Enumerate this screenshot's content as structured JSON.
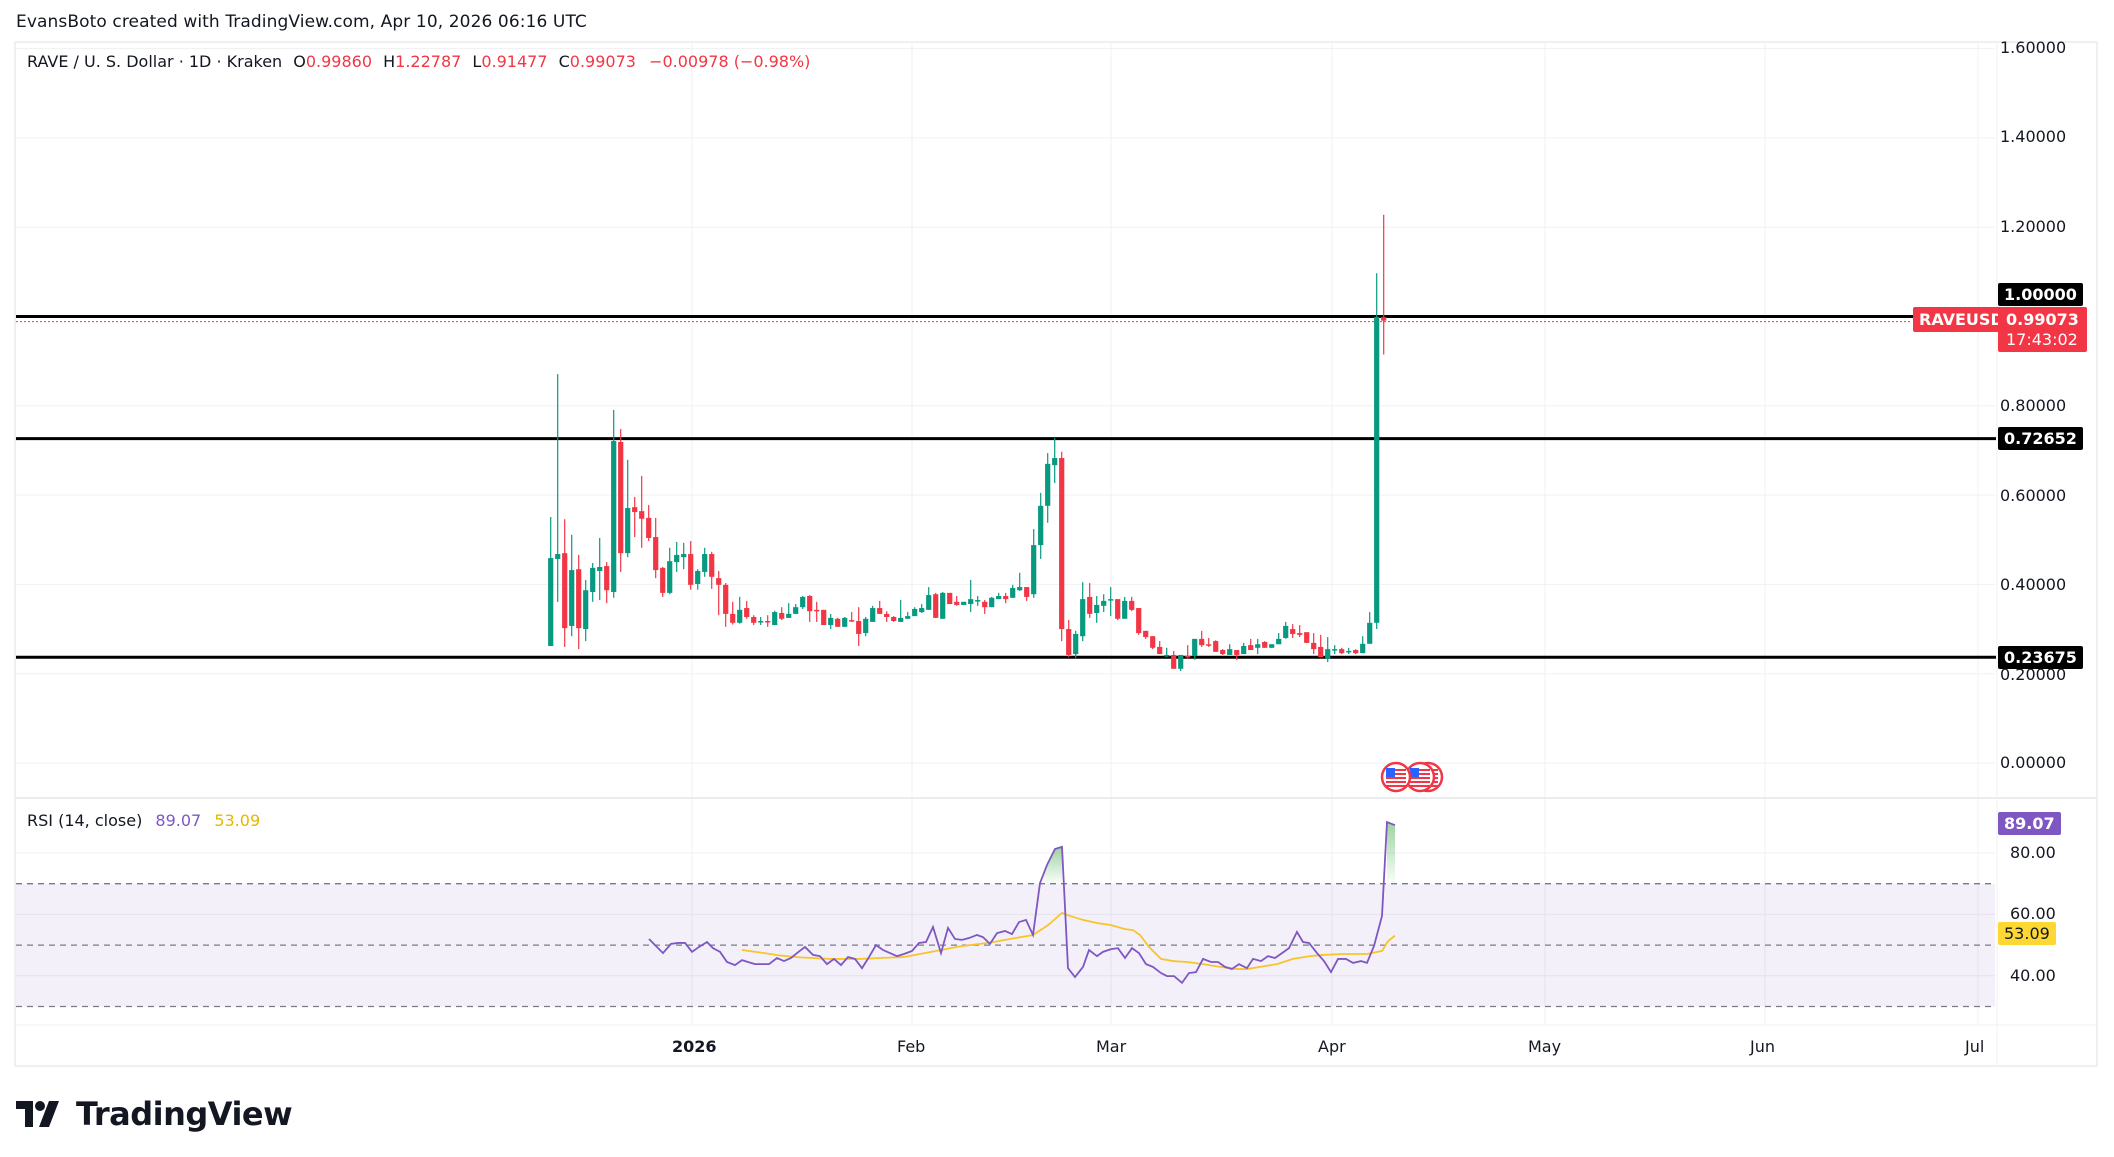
{
  "credit": "EvansBoto created with TradingView.com, Apr 10, 2026 06:16 UTC",
  "legend": {
    "symbol": "RAVE / U. S. Dollar · 1D · Kraken",
    "o_label": "O",
    "o": "0.99860",
    "h_label": "H",
    "h": "1.22787",
    "l_label": "L",
    "l": "0.91477",
    "c_label": "C",
    "c": "0.99073",
    "change": "−0.00978 (−0.98%)"
  },
  "rsi_legend": {
    "label": "RSI (14, close)",
    "rsi": "89.07",
    "ma": "53.09"
  },
  "price_axis": [
    "1.60000",
    "1.40000",
    "1.20000",
    "0.80000",
    "0.60000",
    "0.40000",
    "0.20000",
    "0.00000"
  ],
  "rsi_axis": [
    "80.00",
    "60.00",
    "40.00"
  ],
  "time_axis": [
    "2026",
    "Feb",
    "Mar",
    "Apr",
    "May",
    "Jun",
    "Jul"
  ],
  "horizontal_lines": [
    "1.00000",
    "0.72652",
    "0.23675"
  ],
  "last_price": {
    "symbol": "RAVEUSD",
    "price": "0.99073",
    "countdown": "17:43:02"
  },
  "rsi_tags": {
    "rsi": "89.07",
    "ma": "53.09"
  },
  "logo": {
    "text": "TradingView"
  },
  "colors": {
    "up": "#089981",
    "down": "#f23645",
    "rsi": "#7e57c2",
    "rsi_ma": "#f7c52a",
    "band": "#7e57c2"
  },
  "chart_data": {
    "type": "candlestick",
    "title": "RAVE / U. S. Dollar · 1D · Kraken",
    "ylabel": "USD",
    "ylim": [
      0,
      1.6
    ],
    "price_ticks": [
      0,
      0.2,
      0.4,
      0.6,
      0.8,
      1.2,
      1.4,
      1.6
    ],
    "time_ticks": [
      "2026",
      "Feb",
      "Mar",
      "Apr",
      "May",
      "Jun",
      "Jul"
    ],
    "horizontal_levels": [
      1.0,
      0.72652,
      0.23675
    ],
    "last_close": 0.99073,
    "candles": [
      [
        0.262,
        0.551,
        0.262,
        0.459
      ],
      [
        0.457,
        0.871,
        0.361,
        0.468
      ],
      [
        0.47,
        0.546,
        0.26,
        0.302
      ],
      [
        0.307,
        0.511,
        0.284,
        0.432
      ],
      [
        0.434,
        0.466,
        0.255,
        0.302
      ],
      [
        0.3,
        0.41,
        0.273,
        0.387
      ],
      [
        0.383,
        0.448,
        0.361,
        0.437
      ],
      [
        0.43,
        0.504,
        0.365,
        0.439
      ],
      [
        0.441,
        0.45,
        0.358,
        0.387
      ],
      [
        0.383,
        0.791,
        0.37,
        0.721
      ],
      [
        0.719,
        0.748,
        0.428,
        0.47
      ],
      [
        0.47,
        0.679,
        0.461,
        0.571
      ],
      [
        0.573,
        0.596,
        0.506,
        0.562
      ],
      [
        0.564,
        0.643,
        0.482,
        0.547
      ],
      [
        0.549,
        0.578,
        0.497,
        0.504
      ],
      [
        0.506,
        0.549,
        0.414,
        0.432
      ],
      [
        0.437,
        0.439,
        0.372,
        0.381
      ],
      [
        0.381,
        0.482,
        0.378,
        0.452
      ],
      [
        0.45,
        0.495,
        0.428,
        0.466
      ],
      [
        0.461,
        0.493,
        0.434,
        0.468
      ],
      [
        0.468,
        0.497,
        0.388,
        0.399
      ],
      [
        0.401,
        0.434,
        0.388,
        0.43
      ],
      [
        0.428,
        0.482,
        0.417,
        0.468
      ],
      [
        0.468,
        0.473,
        0.39,
        0.417
      ],
      [
        0.414,
        0.43,
        0.331,
        0.399
      ],
      [
        0.399,
        0.403,
        0.305,
        0.334
      ],
      [
        0.334,
        0.361,
        0.31,
        0.314
      ],
      [
        0.314,
        0.372,
        0.312,
        0.343
      ],
      [
        0.347,
        0.363,
        0.323,
        0.327
      ],
      [
        0.327,
        0.331,
        0.309,
        0.314
      ],
      [
        0.316,
        0.327,
        0.309,
        0.318
      ],
      [
        0.318,
        0.331,
        0.305,
        0.316
      ],
      [
        0.309,
        0.341,
        0.309,
        0.338
      ],
      [
        0.336,
        0.349,
        0.32,
        0.323
      ],
      [
        0.325,
        0.358,
        0.325,
        0.334
      ],
      [
        0.334,
        0.356,
        0.334,
        0.349
      ],
      [
        0.349,
        0.374,
        0.345,
        0.372
      ],
      [
        0.374,
        0.376,
        0.316,
        0.34
      ],
      [
        0.343,
        0.361,
        0.316,
        0.34
      ],
      [
        0.343,
        0.343,
        0.309,
        0.309
      ],
      [
        0.309,
        0.334,
        0.3,
        0.325
      ],
      [
        0.323,
        0.325,
        0.305,
        0.305
      ],
      [
        0.305,
        0.327,
        0.305,
        0.325
      ],
      [
        0.32,
        0.338,
        0.316,
        0.318
      ],
      [
        0.318,
        0.349,
        0.262,
        0.289
      ],
      [
        0.291,
        0.327,
        0.284,
        0.323
      ],
      [
        0.316,
        0.352,
        0.316,
        0.347
      ],
      [
        0.347,
        0.363,
        0.334,
        0.334
      ],
      [
        0.334,
        0.34,
        0.316,
        0.327
      ],
      [
        0.327,
        0.329,
        0.316,
        0.318
      ],
      [
        0.316,
        0.365,
        0.316,
        0.325
      ],
      [
        0.323,
        0.338,
        0.323,
        0.329
      ],
      [
        0.329,
        0.349,
        0.329,
        0.345
      ],
      [
        0.338,
        0.356,
        0.336,
        0.347
      ],
      [
        0.343,
        0.394,
        0.343,
        0.376
      ],
      [
        0.378,
        0.381,
        0.325,
        0.325
      ],
      [
        0.323,
        0.383,
        0.323,
        0.381
      ],
      [
        0.381,
        0.381,
        0.356,
        0.356
      ],
      [
        0.361,
        0.374,
        0.352,
        0.354
      ],
      [
        0.354,
        0.361,
        0.354,
        0.361
      ],
      [
        0.356,
        0.41,
        0.338,
        0.367
      ],
      [
        0.363,
        0.374,
        0.352,
        0.365
      ],
      [
        0.361,
        0.365,
        0.334,
        0.349
      ],
      [
        0.349,
        0.372,
        0.349,
        0.37
      ],
      [
        0.367,
        0.381,
        0.367,
        0.374
      ],
      [
        0.374,
        0.381,
        0.358,
        0.367
      ],
      [
        0.37,
        0.399,
        0.37,
        0.392
      ],
      [
        0.387,
        0.426,
        0.385,
        0.394
      ],
      [
        0.394,
        0.394,
        0.363,
        0.372
      ],
      [
        0.378,
        0.524,
        0.37,
        0.488
      ],
      [
        0.488,
        0.605,
        0.457,
        0.576
      ],
      [
        0.576,
        0.694,
        0.538,
        0.67
      ],
      [
        0.667,
        0.728,
        0.627,
        0.683
      ],
      [
        0.683,
        0.697,
        0.273,
        0.3
      ],
      [
        0.3,
        0.32,
        0.237,
        0.242
      ],
      [
        0.244,
        0.296,
        0.235,
        0.289
      ],
      [
        0.284,
        0.405,
        0.273,
        0.367
      ],
      [
        0.372,
        0.403,
        0.325,
        0.334
      ],
      [
        0.336,
        0.374,
        0.314,
        0.354
      ],
      [
        0.352,
        0.378,
        0.338,
        0.363
      ],
      [
        0.365,
        0.394,
        0.329,
        0.367
      ],
      [
        0.367,
        0.367,
        0.32,
        0.323
      ],
      [
        0.323,
        0.372,
        0.323,
        0.363
      ],
      [
        0.363,
        0.372,
        0.34,
        0.343
      ],
      [
        0.347,
        0.347,
        0.287,
        0.291
      ],
      [
        0.296,
        0.296,
        0.278,
        0.282
      ],
      [
        0.284,
        0.284,
        0.255,
        0.258
      ],
      [
        0.26,
        0.273,
        0.244,
        0.244
      ],
      [
        0.24,
        0.258,
        0.237,
        0.242
      ],
      [
        0.242,
        0.251,
        0.211,
        0.211
      ],
      [
        0.211,
        0.242,
        0.206,
        0.242
      ],
      [
        0.24,
        0.264,
        0.233,
        0.237
      ],
      [
        0.24,
        0.278,
        0.231,
        0.278
      ],
      [
        0.278,
        0.296,
        0.26,
        0.264
      ],
      [
        0.266,
        0.28,
        0.26,
        0.264
      ],
      [
        0.273,
        0.275,
        0.249,
        0.249
      ],
      [
        0.253,
        0.255,
        0.242,
        0.244
      ],
      [
        0.242,
        0.266,
        0.242,
        0.255
      ],
      [
        0.253,
        0.253,
        0.231,
        0.242
      ],
      [
        0.244,
        0.269,
        0.244,
        0.262
      ],
      [
        0.264,
        0.278,
        0.253,
        0.253
      ],
      [
        0.258,
        0.278,
        0.244,
        0.266
      ],
      [
        0.271,
        0.273,
        0.258,
        0.258
      ],
      [
        0.258,
        0.266,
        0.258,
        0.266
      ],
      [
        0.266,
        0.291,
        0.266,
        0.278
      ],
      [
        0.28,
        0.316,
        0.278,
        0.307
      ],
      [
        0.3,
        0.311,
        0.28,
        0.289
      ],
      [
        0.291,
        0.309,
        0.282,
        0.287
      ],
      [
        0.293,
        0.293,
        0.269,
        0.269
      ],
      [
        0.269,
        0.291,
        0.244,
        0.255
      ],
      [
        0.26,
        0.287,
        0.237,
        0.237
      ],
      [
        0.233,
        0.282,
        0.226,
        0.255
      ],
      [
        0.253,
        0.264,
        0.244,
        0.255
      ],
      [
        0.255,
        0.258,
        0.244,
        0.246
      ],
      [
        0.249,
        0.258,
        0.244,
        0.251
      ],
      [
        0.253,
        0.255,
        0.244,
        0.246
      ],
      [
        0.246,
        0.284,
        0.246,
        0.267
      ],
      [
        0.267,
        0.338,
        0.267,
        0.314
      ],
      [
        0.314,
        1.097,
        0.3,
        0.999
      ],
      [
        0.9986,
        1.22787,
        0.91477,
        0.99073
      ]
    ],
    "candle_fields": [
      "open",
      "high",
      "low",
      "close"
    ],
    "first_candle_x": 550.7,
    "candle_spacing_px": 7.1,
    "rsi": {
      "title": "RSI (14, close)",
      "ylim": [
        25,
        95
      ],
      "ticks": [
        40,
        60,
        80
      ],
      "band": [
        30,
        70
      ],
      "middle": 50,
      "last_rsi": 89.07,
      "last_ma": 53.09,
      "series_rsi": [
        [
          649,
          52.0
        ],
        [
          663,
          47.4
        ],
        [
          671,
          50.4
        ],
        [
          678,
          50.7
        ],
        [
          685,
          50.7
        ],
        [
          692,
          47.8
        ],
        [
          699,
          49.4
        ],
        [
          707,
          51.0
        ],
        [
          713,
          49.0
        ],
        [
          720,
          47.8
        ],
        [
          727,
          44.5
        ],
        [
          735,
          43.5
        ],
        [
          742,
          45.1
        ],
        [
          748,
          44.5
        ],
        [
          755,
          43.8
        ],
        [
          763,
          43.8
        ],
        [
          769,
          43.8
        ],
        [
          777,
          45.8
        ],
        [
          784,
          44.8
        ],
        [
          791,
          45.8
        ],
        [
          797,
          47.4
        ],
        [
          805,
          49.4
        ],
        [
          813,
          46.8
        ],
        [
          820,
          46.4
        ],
        [
          827,
          43.8
        ],
        [
          834,
          45.5
        ],
        [
          841,
          43.5
        ],
        [
          848,
          46.1
        ],
        [
          855,
          45.5
        ],
        [
          862,
          42.5
        ],
        [
          869,
          46.1
        ],
        [
          876,
          50.0
        ],
        [
          883,
          48.4
        ],
        [
          890,
          47.4
        ],
        [
          897,
          46.4
        ],
        [
          904,
          47.1
        ],
        [
          912,
          48.1
        ],
        [
          919,
          50.7
        ],
        [
          926,
          51.0
        ],
        [
          933,
          55.9
        ],
        [
          941,
          47.4
        ],
        [
          948,
          55.6
        ],
        [
          955,
          52.0
        ],
        [
          962,
          51.7
        ],
        [
          969,
          52.3
        ],
        [
          977,
          53.3
        ],
        [
          983,
          52.6
        ],
        [
          990,
          50.4
        ],
        [
          997,
          53.9
        ],
        [
          1005,
          54.6
        ],
        [
          1012,
          53.6
        ],
        [
          1019,
          57.5
        ],
        [
          1026,
          58.2
        ],
        [
          1033,
          53.3
        ],
        [
          1040,
          70.2
        ],
        [
          1047,
          76.1
        ],
        [
          1055,
          81.3
        ],
        [
          1062,
          82.0
        ],
        [
          1068,
          42.5
        ],
        [
          1075,
          39.6
        ],
        [
          1083,
          42.9
        ],
        [
          1089,
          48.4
        ],
        [
          1097,
          46.4
        ],
        [
          1103,
          47.8
        ],
        [
          1111,
          48.7
        ],
        [
          1118,
          49.0
        ],
        [
          1125,
          45.8
        ],
        [
          1132,
          49.0
        ],
        [
          1139,
          47.4
        ],
        [
          1146,
          43.8
        ],
        [
          1153,
          42.9
        ],
        [
          1161,
          40.9
        ],
        [
          1167,
          39.9
        ],
        [
          1174,
          39.9
        ],
        [
          1182,
          37.7
        ],
        [
          1189,
          40.9
        ],
        [
          1196,
          41.2
        ],
        [
          1203,
          45.5
        ],
        [
          1211,
          44.5
        ],
        [
          1218,
          44.5
        ],
        [
          1225,
          42.9
        ],
        [
          1232,
          42.2
        ],
        [
          1239,
          43.8
        ],
        [
          1247,
          42.5
        ],
        [
          1253,
          45.5
        ],
        [
          1261,
          44.8
        ],
        [
          1268,
          46.4
        ],
        [
          1275,
          45.8
        ],
        [
          1282,
          47.4
        ],
        [
          1289,
          49.0
        ],
        [
          1297,
          54.3
        ],
        [
          1303,
          51.0
        ],
        [
          1309,
          50.7
        ],
        [
          1317,
          47.4
        ],
        [
          1324,
          44.8
        ],
        [
          1331,
          41.2
        ],
        [
          1338,
          45.5
        ],
        [
          1346,
          45.5
        ],
        [
          1353,
          44.2
        ],
        [
          1361,
          44.8
        ],
        [
          1367,
          44.2
        ],
        [
          1374,
          49.7
        ],
        [
          1382,
          59.5
        ],
        [
          1387,
          90.1
        ],
        [
          1395,
          89.07
        ]
      ],
      "series_ma": [
        [
          742,
          48.4
        ],
        [
          760,
          47.6
        ],
        [
          780,
          46.6
        ],
        [
          800,
          46.0
        ],
        [
          830,
          45.5
        ],
        [
          860,
          45.5
        ],
        [
          880,
          45.8
        ],
        [
          903,
          46.1
        ],
        [
          930,
          47.7
        ],
        [
          960,
          49.6
        ],
        [
          990,
          50.8
        ],
        [
          1010,
          52.0
        ],
        [
          1033,
          53.3
        ],
        [
          1048,
          56.5
        ],
        [
          1062,
          60.5
        ],
        [
          1070,
          59.5
        ],
        [
          1083,
          58.2
        ],
        [
          1097,
          57.2
        ],
        [
          1111,
          56.5
        ],
        [
          1125,
          55.2
        ],
        [
          1133,
          54.9
        ],
        [
          1140,
          53.3
        ],
        [
          1149,
          49.4
        ],
        [
          1161,
          45.5
        ],
        [
          1173,
          44.8
        ],
        [
          1187,
          44.5
        ],
        [
          1203,
          43.8
        ],
        [
          1220,
          42.9
        ],
        [
          1237,
          42.2
        ],
        [
          1247,
          42.2
        ],
        [
          1260,
          42.9
        ],
        [
          1277,
          43.8
        ],
        [
          1293,
          45.5
        ],
        [
          1310,
          46.4
        ],
        [
          1323,
          46.8
        ],
        [
          1343,
          47.1
        ],
        [
          1367,
          47.1
        ],
        [
          1382,
          48.1
        ],
        [
          1388,
          51.3
        ],
        [
          1395,
          53.09
        ]
      ]
    },
    "events": [
      {
        "type": "economic-event-flags",
        "x": 1396
      },
      {
        "type": "economic-event-flags",
        "x": 1420
      }
    ]
  }
}
